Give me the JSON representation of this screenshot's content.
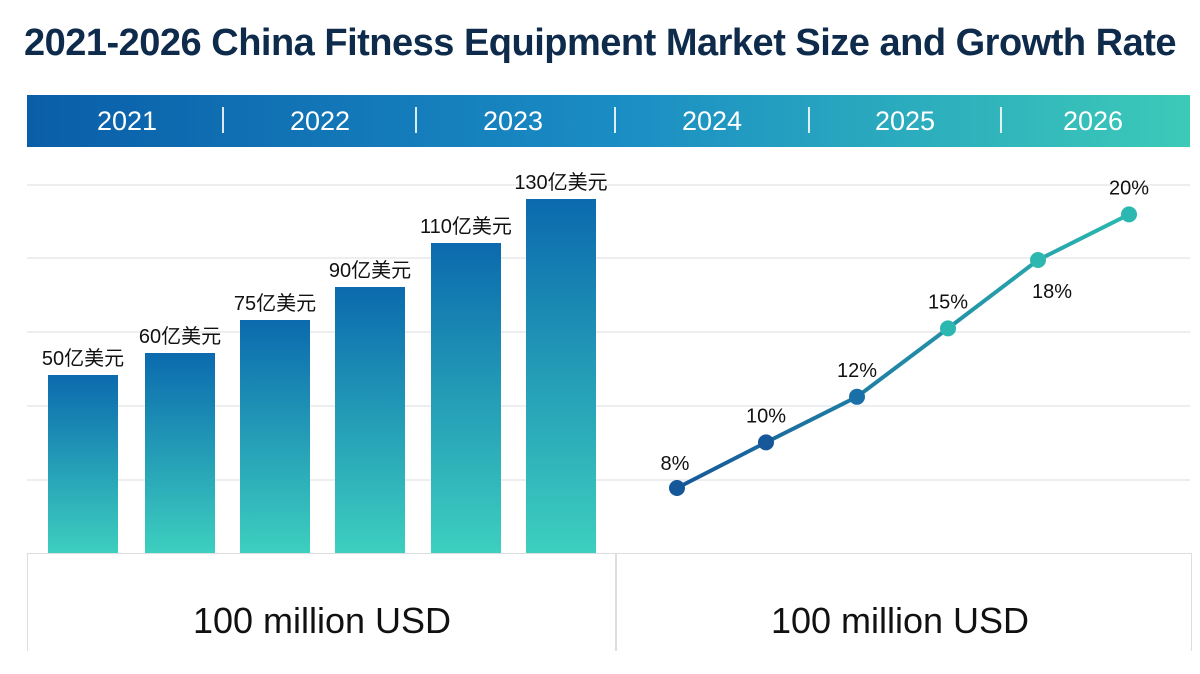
{
  "chart_data": [
    {
      "type": "bar",
      "title": "2021-2026 China Fitness Equipment Market Size and Growth Rate",
      "categories": [
        "2021",
        "2022",
        "2023",
        "2024",
        "2025",
        "2026"
      ],
      "values": [
        50,
        60,
        75,
        90,
        110,
        130
      ],
      "data_labels": [
        "50亿美元",
        "60亿美元",
        "75亿美元",
        "90亿美元",
        "110亿美元",
        "130亿美元"
      ],
      "xlabel": "100 million USD",
      "grid": true,
      "colors": {
        "top": "#0b6aae",
        "bottom": "#3dcfbf"
      }
    },
    {
      "type": "line",
      "categories": [
        "2021",
        "2022",
        "2023",
        "2024",
        "2025",
        "2026"
      ],
      "values": [
        8,
        10,
        12,
        15,
        18,
        20
      ],
      "data_labels": [
        "8%",
        "10%",
        "12%",
        "15%",
        "18%",
        "20%"
      ],
      "xlabel": "100 million USD",
      "grid": true,
      "colors": {
        "start": "#16579a",
        "end": "#2cb8b0"
      }
    }
  ],
  "title": "2021-2026 China Fitness Equipment Market Size and Growth Rate",
  "years": [
    "2021",
    "2022",
    "2023",
    "2024",
    "2025",
    "2026"
  ],
  "units": {
    "left": "100 million USD",
    "right": "100 million USD"
  }
}
